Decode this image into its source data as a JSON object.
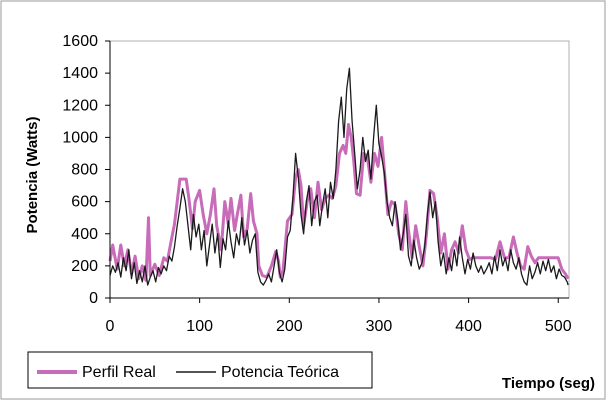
{
  "chart_data": {
    "type": "line",
    "title": "",
    "xlabel": "Tiempo (seg)",
    "ylabel": "Potencia (Watts)",
    "xlim": [
      0,
      512
    ],
    "ylim": [
      0,
      1600
    ],
    "xticks": [
      0,
      100,
      200,
      300,
      400,
      500
    ],
    "yticks": [
      0,
      200,
      400,
      600,
      800,
      1000,
      1200,
      1400,
      1600
    ],
    "grid": false,
    "legend_position": "bottom-left",
    "series": [
      {
        "name": "Perfil Real",
        "color": "#c86bb8",
        "points": [
          [
            0,
            230
          ],
          [
            3,
            330
          ],
          [
            8,
            180
          ],
          [
            12,
            330
          ],
          [
            16,
            200
          ],
          [
            20,
            300
          ],
          [
            24,
            150
          ],
          [
            28,
            260
          ],
          [
            32,
            120
          ],
          [
            36,
            200
          ],
          [
            40,
            110
          ],
          [
            43,
            500
          ],
          [
            45,
            140
          ],
          [
            50,
            210
          ],
          [
            55,
            140
          ],
          [
            60,
            250
          ],
          [
            64,
            230
          ],
          [
            68,
            350
          ],
          [
            72,
            460
          ],
          [
            75,
            600
          ],
          [
            78,
            740
          ],
          [
            85,
            740
          ],
          [
            88,
            620
          ],
          [
            92,
            430
          ],
          [
            95,
            600
          ],
          [
            100,
            670
          ],
          [
            104,
            520
          ],
          [
            108,
            400
          ],
          [
            112,
            520
          ],
          [
            116,
            680
          ],
          [
            119,
            450
          ],
          [
            124,
            300
          ],
          [
            128,
            600
          ],
          [
            132,
            460
          ],
          [
            135,
            620
          ],
          [
            139,
            420
          ],
          [
            142,
            520
          ],
          [
            146,
            640
          ],
          [
            149,
            380
          ],
          [
            153,
            430
          ],
          [
            157,
            650
          ],
          [
            160,
            480
          ],
          [
            164,
            400
          ],
          [
            166,
            200
          ],
          [
            170,
            140
          ],
          [
            175,
            130
          ],
          [
            180,
            200
          ],
          [
            185,
            290
          ],
          [
            188,
            230
          ],
          [
            190,
            130
          ],
          [
            193,
            170
          ],
          [
            198,
            480
          ],
          [
            203,
            520
          ],
          [
            207,
            750
          ],
          [
            210,
            800
          ],
          [
            213,
            700
          ],
          [
            216,
            450
          ],
          [
            220,
            600
          ],
          [
            224,
            680
          ],
          [
            228,
            500
          ],
          [
            232,
            720
          ],
          [
            236,
            550
          ],
          [
            240,
            620
          ],
          [
            244,
            640
          ],
          [
            248,
            620
          ],
          [
            252,
            700
          ],
          [
            256,
            900
          ],
          [
            260,
            950
          ],
          [
            263,
            900
          ],
          [
            266,
            1080
          ],
          [
            269,
            1000
          ],
          [
            272,
            850
          ],
          [
            275,
            650
          ],
          [
            279,
            640
          ],
          [
            283,
            900
          ],
          [
            287,
            880
          ],
          [
            291,
            720
          ],
          [
            295,
            900
          ],
          [
            299,
            820
          ],
          [
            303,
            1000
          ],
          [
            306,
            800
          ],
          [
            310,
            520
          ],
          [
            314,
            600
          ],
          [
            318,
            580
          ],
          [
            322,
            400
          ],
          [
            326,
            300
          ],
          [
            330,
            600
          ],
          [
            333,
            420
          ],
          [
            337,
            250
          ],
          [
            341,
            450
          ],
          [
            345,
            320
          ],
          [
            349,
            200
          ],
          [
            353,
            400
          ],
          [
            357,
            670
          ],
          [
            361,
            650
          ],
          [
            365,
            500
          ],
          [
            369,
            280
          ],
          [
            373,
            400
          ],
          [
            377,
            180
          ],
          [
            381,
            300
          ],
          [
            385,
            350
          ],
          [
            389,
            280
          ],
          [
            393,
            450
          ],
          [
            397,
            300
          ],
          [
            401,
            240
          ],
          [
            405,
            250
          ],
          [
            410,
            250
          ],
          [
            415,
            250
          ],
          [
            420,
            250
          ],
          [
            425,
            250
          ],
          [
            430,
            240
          ],
          [
            435,
            350
          ],
          [
            440,
            250
          ],
          [
            445,
            250
          ],
          [
            450,
            380
          ],
          [
            454,
            280
          ],
          [
            458,
            200
          ],
          [
            462,
            180
          ],
          [
            466,
            320
          ],
          [
            470,
            260
          ],
          [
            474,
            220
          ],
          [
            478,
            250
          ],
          [
            484,
            250
          ],
          [
            490,
            250
          ],
          [
            496,
            250
          ],
          [
            500,
            250
          ],
          [
            504,
            180
          ],
          [
            508,
            150
          ],
          [
            511,
            120
          ]
        ]
      },
      {
        "name": "Potencia Teórica",
        "color": "#1a1a1a",
        "points": [
          [
            0,
            140
          ],
          [
            3,
            200
          ],
          [
            6,
            160
          ],
          [
            9,
            220
          ],
          [
            12,
            130
          ],
          [
            15,
            250
          ],
          [
            18,
            170
          ],
          [
            21,
            300
          ],
          [
            24,
            120
          ],
          [
            27,
            220
          ],
          [
            30,
            90
          ],
          [
            33,
            170
          ],
          [
            36,
            100
          ],
          [
            39,
            200
          ],
          [
            42,
            80
          ],
          [
            45,
            130
          ],
          [
            48,
            170
          ],
          [
            51,
            100
          ],
          [
            54,
            190
          ],
          [
            57,
            150
          ],
          [
            60,
            200
          ],
          [
            63,
            170
          ],
          [
            66,
            260
          ],
          [
            69,
            230
          ],
          [
            72,
            320
          ],
          [
            75,
            450
          ],
          [
            78,
            560
          ],
          [
            81,
            680
          ],
          [
            84,
            600
          ],
          [
            87,
            450
          ],
          [
            90,
            300
          ],
          [
            93,
            520
          ],
          [
            96,
            380
          ],
          [
            99,
            460
          ],
          [
            102,
            300
          ],
          [
            105,
            420
          ],
          [
            108,
            200
          ],
          [
            111,
            330
          ],
          [
            114,
            460
          ],
          [
            117,
            280
          ],
          [
            120,
            400
          ],
          [
            123,
            190
          ],
          [
            126,
            370
          ],
          [
            129,
            300
          ],
          [
            132,
            480
          ],
          [
            135,
            350
          ],
          [
            138,
            250
          ],
          [
            141,
            400
          ],
          [
            144,
            330
          ],
          [
            147,
            500
          ],
          [
            150,
            330
          ],
          [
            153,
            420
          ],
          [
            156,
            280
          ],
          [
            159,
            360
          ],
          [
            162,
            400
          ],
          [
            165,
            160
          ],
          [
            168,
            100
          ],
          [
            171,
            80
          ],
          [
            174,
            110
          ],
          [
            177,
            150
          ],
          [
            180,
            100
          ],
          [
            183,
            200
          ],
          [
            186,
            300
          ],
          [
            189,
            160
          ],
          [
            192,
            100
          ],
          [
            195,
            180
          ],
          [
            198,
            380
          ],
          [
            201,
            420
          ],
          [
            204,
            620
          ],
          [
            207,
            900
          ],
          [
            210,
            750
          ],
          [
            213,
            520
          ],
          [
            216,
            400
          ],
          [
            219,
            600
          ],
          [
            222,
            700
          ],
          [
            225,
            450
          ],
          [
            228,
            600
          ],
          [
            231,
            640
          ],
          [
            234,
            450
          ],
          [
            237,
            580
          ],
          [
            240,
            680
          ],
          [
            243,
            500
          ],
          [
            246,
            720
          ],
          [
            249,
            620
          ],
          [
            252,
            800
          ],
          [
            255,
            1100
          ],
          [
            258,
            1250
          ],
          [
            261,
            1000
          ],
          [
            264,
            1300
          ],
          [
            267,
            1430
          ],
          [
            270,
            1100
          ],
          [
            273,
            900
          ],
          [
            276,
            680
          ],
          [
            279,
            800
          ],
          [
            282,
            1000
          ],
          [
            285,
            850
          ],
          [
            288,
            920
          ],
          [
            291,
            740
          ],
          [
            294,
            1000
          ],
          [
            297,
            1200
          ],
          [
            300,
            960
          ],
          [
            303,
            880
          ],
          [
            306,
            780
          ],
          [
            309,
            600
          ],
          [
            312,
            500
          ],
          [
            315,
            450
          ],
          [
            318,
            600
          ],
          [
            321,
            480
          ],
          [
            324,
            300
          ],
          [
            327,
            400
          ],
          [
            330,
            520
          ],
          [
            333,
            260
          ],
          [
            336,
            200
          ],
          [
            339,
            360
          ],
          [
            342,
            250
          ],
          [
            345,
            180
          ],
          [
            348,
            220
          ],
          [
            351,
            320
          ],
          [
            354,
            520
          ],
          [
            357,
            660
          ],
          [
            360,
            500
          ],
          [
            363,
            600
          ],
          [
            366,
            350
          ],
          [
            369,
            200
          ],
          [
            372,
            280
          ],
          [
            375,
            150
          ],
          [
            378,
            250
          ],
          [
            381,
            170
          ],
          [
            384,
            300
          ],
          [
            387,
            200
          ],
          [
            390,
            380
          ],
          [
            393,
            250
          ],
          [
            396,
            150
          ],
          [
            399,
            240
          ],
          [
            402,
            180
          ],
          [
            405,
            280
          ],
          [
            408,
            200
          ],
          [
            411,
            160
          ],
          [
            414,
            200
          ],
          [
            417,
            150
          ],
          [
            420,
            180
          ],
          [
            423,
            220
          ],
          [
            426,
            150
          ],
          [
            429,
            260
          ],
          [
            432,
            170
          ],
          [
            435,
            300
          ],
          [
            438,
            200
          ],
          [
            441,
            250
          ],
          [
            444,
            170
          ],
          [
            447,
            300
          ],
          [
            450,
            220
          ],
          [
            453,
            180
          ],
          [
            456,
            250
          ],
          [
            459,
            150
          ],
          [
            462,
            100
          ],
          [
            465,
            80
          ],
          [
            468,
            200
          ],
          [
            471,
            120
          ],
          [
            474,
            160
          ],
          [
            477,
            220
          ],
          [
            480,
            150
          ],
          [
            483,
            230
          ],
          [
            486,
            170
          ],
          [
            489,
            240
          ],
          [
            492,
            160
          ],
          [
            495,
            200
          ],
          [
            498,
            120
          ],
          [
            501,
            180
          ],
          [
            504,
            140
          ],
          [
            507,
            130
          ],
          [
            510,
            100
          ],
          [
            511,
            80
          ]
        ]
      }
    ]
  }
}
